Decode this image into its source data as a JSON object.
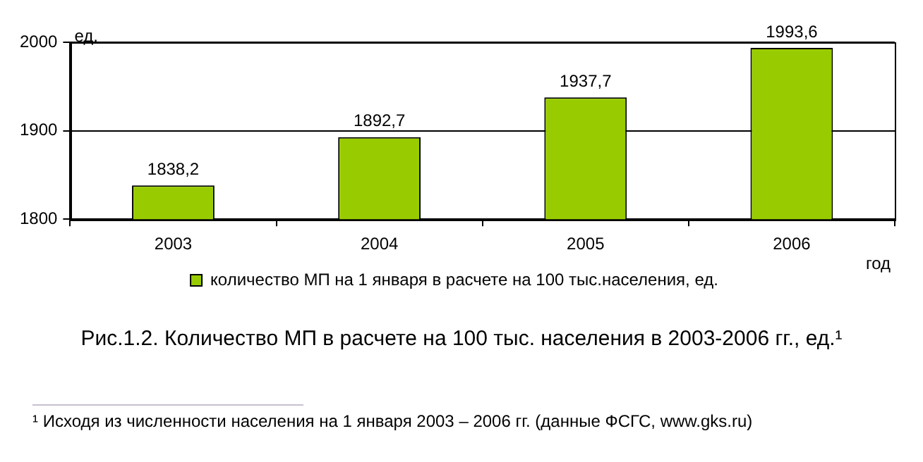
{
  "chart_data": {
    "type": "bar",
    "title": "Рис.1.2. Количество МП в расчете на 100 тыс. населения в 2003-2006 гг., ед.¹",
    "categories": [
      "2003",
      "2004",
      "2005",
      "2006"
    ],
    "series": [
      {
        "name": "количество МП на 1 января в расчете на 100 тыс.населения, ед.",
        "color": "#99cc00",
        "values": [
          1838.2,
          1892.7,
          1937.7,
          1993.6
        ],
        "value_labels": [
          "1838,2",
          "1892,7",
          "1937,7",
          "1993,6"
        ]
      }
    ],
    "ylabel": "ед.",
    "xlabel": "год",
    "ylim": [
      1800,
      2000
    ],
    "yticks": [
      1800,
      1900,
      2000
    ],
    "grid": "y",
    "legend": "bottom",
    "annotations": [
      "¹ Исходя из численности населения на 1 января 2003 – 2006 гг. (данные ФСГС, www.gks.ru)"
    ]
  }
}
